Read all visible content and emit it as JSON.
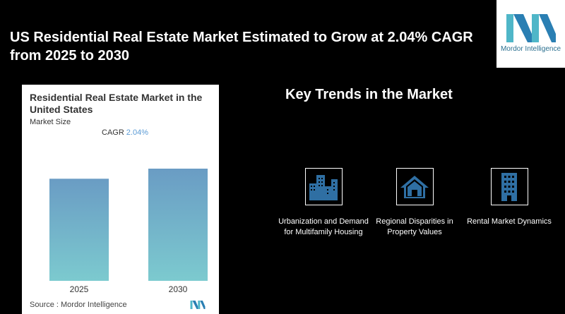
{
  "headline": "US Residential Real Estate Market Estimated to Grow at 2.04% CAGR from 2025 to 2030",
  "logo": {
    "text": "Mordor Intelligence"
  },
  "card": {
    "title": "Residential Real Estate Market in the United States",
    "subtitle": "Market Size",
    "cagr_label": "CAGR",
    "cagr_value": "2.04%",
    "source": "Source :  Mordor Intelligence"
  },
  "chart_data": {
    "type": "bar",
    "categories": [
      "2025",
      "2030"
    ],
    "values": [
      0.91,
      1.0
    ],
    "title": "Residential Real Estate Market in the United States",
    "ylabel": "",
    "xlabel": "",
    "grid": false,
    "colors": {
      "top": "#6a9cc4",
      "bottom": "#7ccacf"
    }
  },
  "trends": {
    "title": "Key Trends in the Market",
    "items": [
      {
        "label": "Urbanization and Demand for Multifamily Housing",
        "icon": "city-buildings-icon"
      },
      {
        "label": "Regional Disparities in Property Values",
        "icon": "house-icon"
      },
      {
        "label": "Rental Market Dynamics",
        "icon": "apartment-building-icon"
      }
    ]
  },
  "colors": {
    "icon": "#2f6fa3",
    "background": "#000000",
    "card": "#ffffff"
  }
}
